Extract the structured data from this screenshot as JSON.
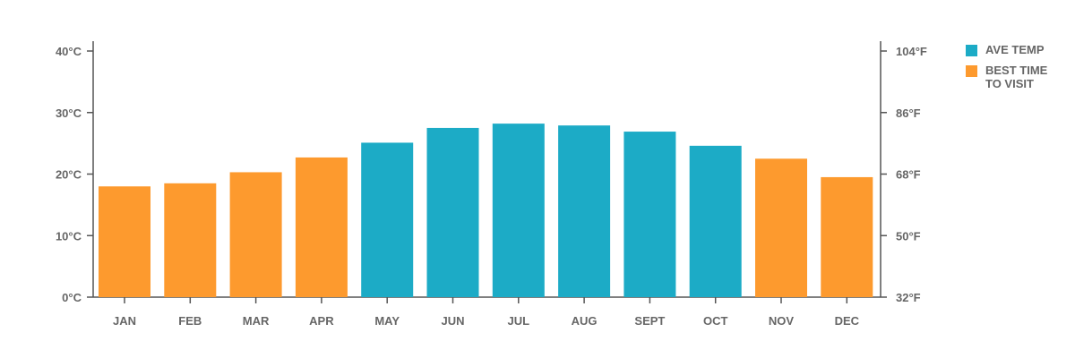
{
  "chart_data": {
    "type": "bar",
    "categories": [
      "JAN",
      "FEB",
      "MAR",
      "APR",
      "MAY",
      "JUN",
      "JUL",
      "AUG",
      "SEPT",
      "OCT",
      "NOV",
      "DEC"
    ],
    "values": [
      18,
      18.5,
      20.3,
      22.7,
      25.1,
      27.5,
      28.2,
      27.9,
      26.9,
      24.6,
      22.5,
      19.5
    ],
    "best_time": [
      true,
      true,
      true,
      true,
      false,
      false,
      false,
      false,
      false,
      false,
      true,
      true
    ],
    "ylim": [
      0,
      40
    ],
    "yticks_left": [
      "0°C",
      "10°C",
      "20°C",
      "30°C",
      "40°C"
    ],
    "yticks_right": [
      "32°F",
      "50°F",
      "68°F",
      "86°F",
      "104°F"
    ],
    "colors": {
      "ave_temp": "#1CABC6",
      "best_time": "#FD9A2E",
      "axis": "#555555",
      "text": "#666666"
    },
    "grid": false,
    "legend_position": "right"
  },
  "legend": {
    "ave_temp_label": "AVE TEMP",
    "best_time_label": "BEST TIME TO VISIT"
  }
}
